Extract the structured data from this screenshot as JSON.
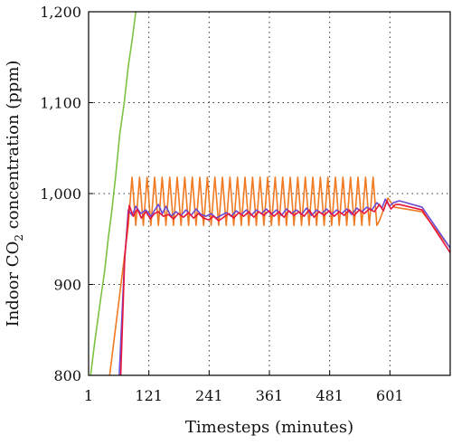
{
  "chart_data": {
    "type": "line",
    "xlabel": "Timesteps (minutes)",
    "ylabel_parts": [
      "Indoor CO",
      "2",
      " concentration (ppm)"
    ],
    "xlim": [
      1,
      721
    ],
    "ylim": [
      800,
      1200
    ],
    "x_ticks": [
      1,
      121,
      241,
      361,
      481,
      601
    ],
    "x_tick_labels": [
      "1",
      "121",
      "241",
      "361",
      "481",
      "601"
    ],
    "y_ticks": [
      800,
      900,
      1000,
      1100,
      1200
    ],
    "y_tick_labels": [
      "800",
      "900",
      "1,000",
      "1,100",
      "1,200"
    ],
    "grid": true,
    "colors": {
      "green": "#7cc242",
      "orange": "#f07a22",
      "purple": "#6a4bd6",
      "red": "#e8163c"
    },
    "series": [
      {
        "color_key": "green",
        "x": [
          5,
          14,
          24,
          33,
          40,
          47,
          55,
          63,
          72,
          80,
          88,
          95
        ],
        "y": [
          800,
          840,
          880,
          915,
          950,
          980,
          1020,
          1065,
          1100,
          1140,
          1170,
          1200
        ]
      },
      {
        "color_key": "orange",
        "generator": "sawtooth",
        "x_start": 43,
        "ramp_to": 80,
        "ramp_y": 965,
        "period": 15,
        "low": 965,
        "high": 1018,
        "x_end": 580,
        "tail_x": [
          580,
          597,
          610,
          665,
          721
        ],
        "tail_y": [
          970,
          995,
          985,
          980,
          940
        ]
      },
      {
        "color_key": "purple",
        "x": [
          62,
          72,
          80,
          88,
          95,
          105,
          115,
          125,
          133,
          140,
          148,
          155,
          165,
          175,
          185,
          195,
          205,
          215,
          225,
          235,
          245,
          255,
          265,
          275,
          285,
          295,
          305,
          315,
          325,
          335,
          345,
          355,
          365,
          375,
          385,
          395,
          405,
          415,
          425,
          435,
          445,
          455,
          465,
          475,
          485,
          495,
          505,
          515,
          525,
          535,
          545,
          555,
          565,
          575,
          585,
          592,
          600,
          608,
          620,
          665,
          721
        ],
        "y": [
          800,
          920,
          982,
          976,
          986,
          978,
          982,
          975,
          982,
          988,
          978,
          986,
          975,
          980,
          976,
          982,
          976,
          983,
          977,
          975,
          978,
          973,
          976,
          979,
          975,
          981,
          977,
          982,
          976,
          982,
          978,
          983,
          977,
          982,
          976,
          983,
          978,
          982,
          977,
          984,
          976,
          982,
          978,
          983,
          977,
          982,
          978,
          983,
          977,
          984,
          980,
          985,
          982,
          990,
          984,
          994,
          986,
          990,
          992,
          985,
          940
        ]
      },
      {
        "color_key": "red",
        "x": [
          65,
          73,
          82,
          90,
          98,
          106,
          115,
          124,
          132,
          140,
          150,
          160,
          170,
          180,
          190,
          200,
          210,
          220,
          230,
          240,
          250,
          260,
          270,
          280,
          290,
          300,
          310,
          320,
          330,
          340,
          350,
          360,
          370,
          380,
          390,
          400,
          410,
          420,
          430,
          440,
          450,
          460,
          470,
          480,
          490,
          500,
          510,
          520,
          530,
          540,
          550,
          560,
          570,
          580,
          588,
          595,
          603,
          612,
          620,
          665,
          721
        ],
        "y": [
          800,
          930,
          987,
          975,
          983,
          973,
          980,
          972,
          978,
          980,
          975,
          977,
          972,
          978,
          974,
          979,
          973,
          978,
          973,
          971,
          975,
          970,
          974,
          978,
          973,
          979,
          975,
          980,
          974,
          980,
          976,
          981,
          975,
          980,
          974,
          981,
          976,
          980,
          975,
          982,
          974,
          980,
          976,
          981,
          975,
          980,
          976,
          982,
          976,
          982,
          978,
          983,
          980,
          988,
          981,
          992,
          983,
          988,
          988,
          982,
          935
        ]
      }
    ]
  }
}
